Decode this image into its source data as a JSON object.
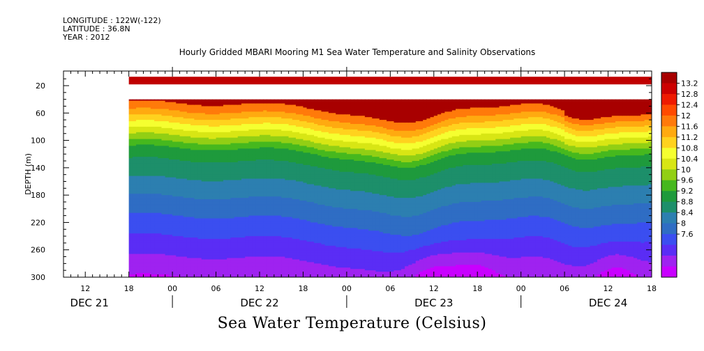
{
  "header": {
    "lines": [
      "LONGITUDE : 122W(-122)",
      "LATITUDE : 36.8N",
      "YEAR : 2012"
    ],
    "title": "Hourly Gridded MBARI Mooring M1 Sea Water Temperature and Salinity Observations"
  },
  "footer": {
    "title": "Sea Water Temperature (Celsius)"
  },
  "chart_data": {
    "type": "heatmap",
    "title": "Hourly Gridded MBARI Mooring M1 Sea Water Temperature and Salinity Observations",
    "xlabel": "",
    "ylabel": "DEPTH (m)",
    "y_inverted": true,
    "ylim": [
      300,
      0
    ],
    "yticks": [
      20,
      60,
      100,
      140,
      180,
      220,
      260,
      300
    ],
    "x_hour_ticks": [
      "12",
      "18",
      "00",
      "06",
      "12",
      "18",
      "00",
      "06",
      "12",
      "18",
      "00",
      "06",
      "12",
      "18"
    ],
    "x_day_labels": [
      "DEC 21",
      "DEC 22",
      "DEC 23",
      "DEC 24"
    ],
    "x_range_hours": [
      9,
      90
    ],
    "data_start_hour": 18,
    "depth_bands": {
      "surface_band": [
        10,
        15
      ],
      "main_field_top": 40,
      "main_field_bottom": 300
    },
    "colorbar": {
      "levels": [
        7.6,
        8,
        8.4,
        8.8,
        9.2,
        9.6,
        10,
        10.4,
        10.8,
        11.2,
        11.6,
        12,
        12.4,
        12.8,
        13.2
      ],
      "labels": [
        "13.2",
        "12.8",
        "12.4",
        "12",
        "11.6",
        "11.2",
        "10.8",
        "10.4",
        "10",
        "9.6",
        "9.2",
        "8.8",
        "8.4",
        "8",
        "7.6"
      ],
      "colors": [
        "#c800ff",
        "#9f22f0",
        "#5a2df5",
        "#3b4ef0",
        "#2f6dc4",
        "#2c7fb0",
        "#1d8f6a",
        "#1e9a3c",
        "#46b81e",
        "#92cf14",
        "#d8e614",
        "#f5ff30",
        "#ffd21e",
        "#ffaa10",
        "#ff7a0a",
        "#ff4a00",
        "#ee1a00",
        "#cc0000",
        "#a80000"
      ]
    },
    "unit": "Celsius"
  }
}
